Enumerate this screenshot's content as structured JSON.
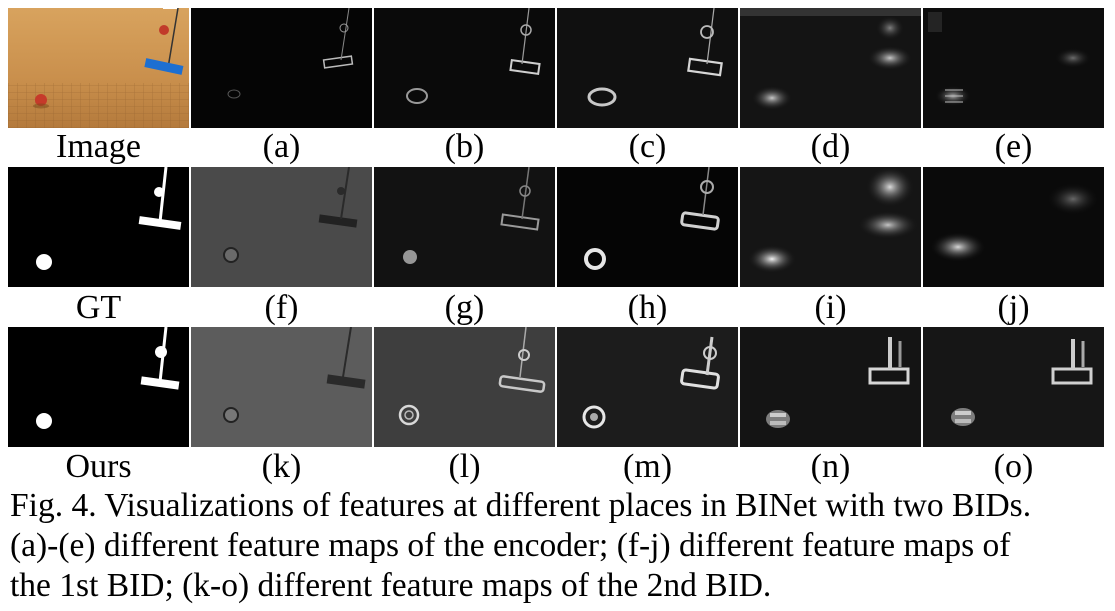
{
  "figure": {
    "rows": [
      {
        "panels": [
          {
            "label": "Image",
            "kind": "photo"
          },
          {
            "label": "(a)",
            "kind": "feature"
          },
          {
            "label": "(b)",
            "kind": "feature"
          },
          {
            "label": "(c)",
            "kind": "feature"
          },
          {
            "label": "(d)",
            "kind": "feature"
          },
          {
            "label": "(e)",
            "kind": "feature"
          }
        ]
      },
      {
        "panels": [
          {
            "label": "GT",
            "kind": "mask"
          },
          {
            "label": "(f)",
            "kind": "feature"
          },
          {
            "label": "(g)",
            "kind": "feature"
          },
          {
            "label": "(h)",
            "kind": "feature"
          },
          {
            "label": "(i)",
            "kind": "feature"
          },
          {
            "label": "(j)",
            "kind": "feature"
          }
        ]
      },
      {
        "panels": [
          {
            "label": "Ours",
            "kind": "mask"
          },
          {
            "label": "(k)",
            "kind": "feature"
          },
          {
            "label": "(l)",
            "kind": "feature"
          },
          {
            "label": "(m)",
            "kind": "feature"
          },
          {
            "label": "(n)",
            "kind": "feature"
          },
          {
            "label": "(o)",
            "kind": "feature"
          }
        ]
      }
    ],
    "caption": {
      "line1": "Fig. 4. Visualizations of features at different places in BINet with two BIDs.",
      "line2": "(a)-(e) different feature maps of the encoder; (f-j) different feature maps of",
      "line3": "the 1st BID; (k-o) different feature maps of the 2nd BID."
    }
  }
}
